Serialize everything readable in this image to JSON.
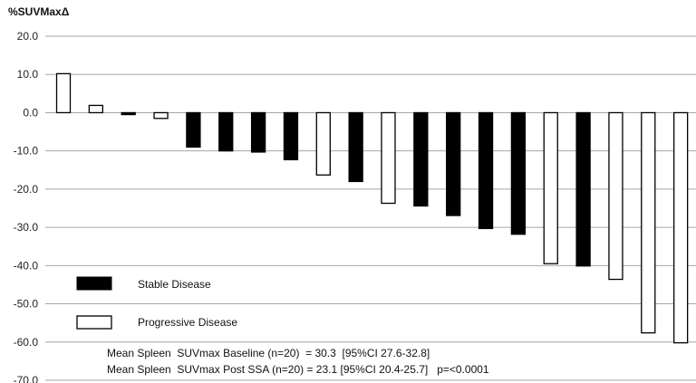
{
  "chart_data": {
    "type": "bar",
    "ylabel": "%SUVMaxΔ",
    "ylim": [
      -70,
      20
    ],
    "yticks": [
      "20.0",
      "10.0",
      "0.0",
      "-10.0",
      "-20.0",
      "-30.0",
      "-40.0",
      "-50.0",
      "-60.0",
      "-70.0"
    ],
    "grid": true,
    "legend_position": "bottom-left",
    "series": [
      {
        "name": "Stable Disease",
        "color": "#000000",
        "fill": "solid"
      },
      {
        "name": "Progressive Disease",
        "color": "#ffffff",
        "fill": "outline"
      }
    ],
    "bars": [
      {
        "value": 10.2,
        "group": "Progressive Disease"
      },
      {
        "value": 1.9,
        "group": "Progressive Disease"
      },
      {
        "value": -0.5,
        "group": "Stable Disease"
      },
      {
        "value": -1.5,
        "group": "Progressive Disease"
      },
      {
        "value": -9.0,
        "group": "Stable Disease"
      },
      {
        "value": -10.0,
        "group": "Stable Disease"
      },
      {
        "value": -10.3,
        "group": "Stable Disease"
      },
      {
        "value": -12.3,
        "group": "Stable Disease"
      },
      {
        "value": -16.3,
        "group": "Progressive Disease"
      },
      {
        "value": -18.0,
        "group": "Stable Disease"
      },
      {
        "value": -23.7,
        "group": "Progressive Disease"
      },
      {
        "value": -24.4,
        "group": "Stable Disease"
      },
      {
        "value": -26.9,
        "group": "Stable Disease"
      },
      {
        "value": -30.3,
        "group": "Stable Disease"
      },
      {
        "value": -31.8,
        "group": "Stable Disease"
      },
      {
        "value": -39.5,
        "group": "Progressive Disease"
      },
      {
        "value": -40.1,
        "group": "Stable Disease"
      },
      {
        "value": -43.6,
        "group": "Progressive Disease"
      },
      {
        "value": -57.6,
        "group": "Progressive Disease"
      },
      {
        "value": -60.2,
        "group": "Progressive Disease"
      }
    ],
    "annotations": [
      "Mean Spleen  SUVmax Baseline (n=20)  = 30.3  [95%CI 27.6-32.8]",
      "Mean Spleen  SUVmax Post SSA (n=20) = 23.1 [95%CI 20.4-25.7]   p=<0.0001"
    ]
  }
}
